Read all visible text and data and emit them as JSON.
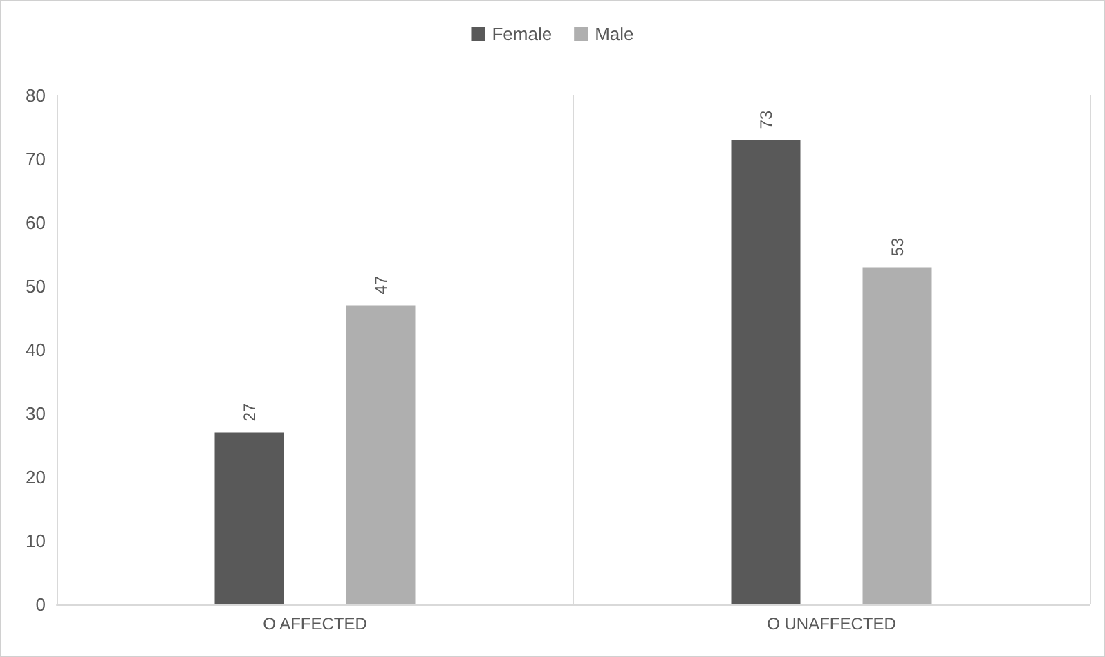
{
  "chart_data": {
    "type": "bar",
    "categories": [
      "O AFFECTED",
      "O UNAFFECTED"
    ],
    "series": [
      {
        "name": "Female",
        "color": "#595959",
        "values": [
          27,
          73
        ]
      },
      {
        "name": "Male",
        "color": "#afafaf",
        "values": [
          47,
          53
        ]
      }
    ],
    "ylim": [
      0,
      80
    ],
    "yticks": [
      0,
      10,
      20,
      30,
      40,
      50,
      60,
      70,
      80
    ],
    "grid": "x",
    "legend": "top",
    "data_labels": true
  }
}
